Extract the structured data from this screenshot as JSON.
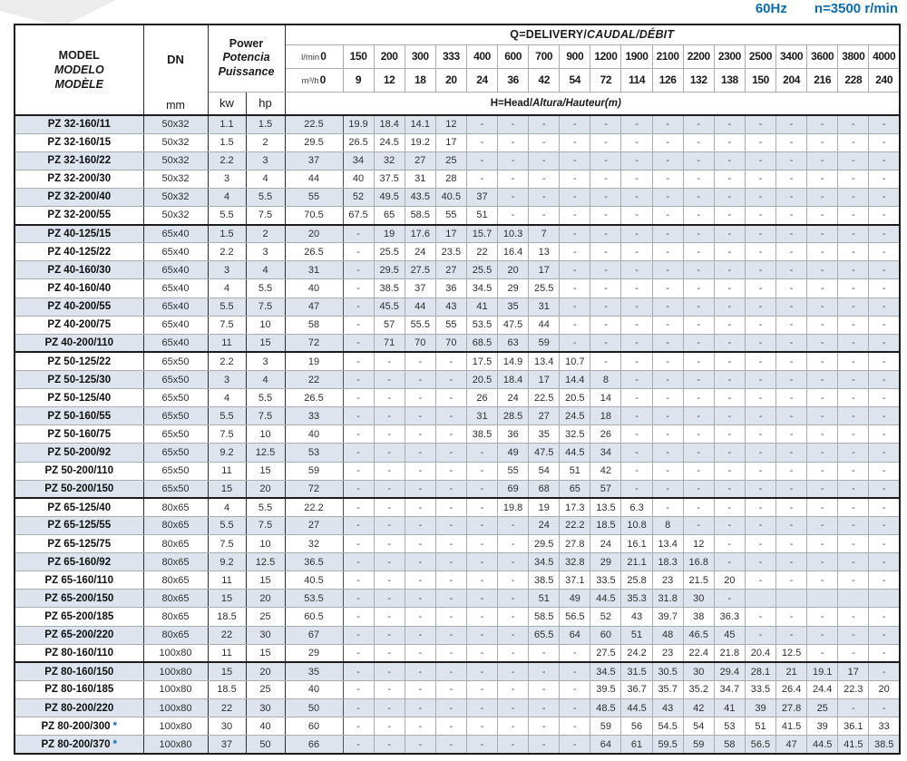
{
  "header": {
    "frequency": "60Hz",
    "speed": "n=3500 r/min"
  },
  "colors": {
    "accent_blue": "#0a6cb5",
    "row_shade": "#dde4ee"
  },
  "table": {
    "column_headers": {
      "model_line1": "MODEL",
      "model_line2": "MODELO",
      "model_line3": "MODÈLE",
      "dn": "DN",
      "dn_unit": "mm",
      "power_line1": "Power",
      "power_line2": "Potencia",
      "power_line3": "Puissance",
      "kw": "kw",
      "hp": "hp",
      "q_title_plain": "Q=DELIVERY/",
      "q_title_italic": "CAUDAL/DÉBIT",
      "lmin_label": "l/min",
      "lmin_zero": "0",
      "m3h_label": "m³/h",
      "m3h_zero": "0",
      "lmin_values": [
        "150",
        "200",
        "300",
        "333",
        "400",
        "600",
        "700",
        "900",
        "1200",
        "1900",
        "2100",
        "2200",
        "2300",
        "2500",
        "3400",
        "3600",
        "3800",
        "4000"
      ],
      "m3h_values": [
        "9",
        "12",
        "18",
        "20",
        "24",
        "36",
        "42",
        "54",
        "72",
        "114",
        "126",
        "132",
        "138",
        "150",
        "204",
        "216",
        "228",
        "240"
      ],
      "h_title_plain": "H=Head/",
      "h_title_italic": "Altura/Hauteur(m)"
    },
    "star_symbol": "*",
    "rows": [
      {
        "model": "PZ 32-160/11",
        "dn": "50x32",
        "kw": "1.1",
        "hp": "1.5",
        "heads": [
          "22.5",
          "19.9",
          "18.4",
          "14.1",
          "12",
          "-",
          "-",
          "-",
          "-",
          "-",
          "-",
          "-",
          "-",
          "-",
          "-",
          "-",
          "-",
          "-",
          "-"
        ]
      },
      {
        "model": "PZ 32-160/15",
        "dn": "50x32",
        "kw": "1.5",
        "hp": "2",
        "heads": [
          "29.5",
          "26.5",
          "24.5",
          "19.2",
          "17",
          "-",
          "-",
          "-",
          "-",
          "-",
          "-",
          "-",
          "-",
          "-",
          "-",
          "-",
          "-",
          "-",
          "-"
        ]
      },
      {
        "model": "PZ 32-160/22",
        "dn": "50x32",
        "kw": "2.2",
        "hp": "3",
        "heads": [
          "37",
          "34",
          "32",
          "27",
          "25",
          "-",
          "-",
          "-",
          "-",
          "-",
          "-",
          "-",
          "-",
          "-",
          "-",
          "-",
          "-",
          "-",
          "-"
        ]
      },
      {
        "model": "PZ 32-200/30",
        "dn": "50x32",
        "kw": "3",
        "hp": "4",
        "heads": [
          "44",
          "40",
          "37.5",
          "31",
          "28",
          "-",
          "-",
          "-",
          "-",
          "-",
          "-",
          "-",
          "-",
          "-",
          "-",
          "-",
          "-",
          "-",
          "-"
        ]
      },
      {
        "model": "PZ 32-200/40",
        "dn": "50x32",
        "kw": "4",
        "hp": "5.5",
        "heads": [
          "55",
          "52",
          "49.5",
          "43.5",
          "40.5",
          "37",
          "-",
          "-",
          "-",
          "-",
          "-",
          "-",
          "-",
          "-",
          "-",
          "-",
          "-",
          "-",
          "-"
        ]
      },
      {
        "model": "PZ 32-200/55",
        "dn": "50x32",
        "kw": "5.5",
        "hp": "7.5",
        "heads": [
          "70.5",
          "67.5",
          "65",
          "58.5",
          "55",
          "51",
          "-",
          "-",
          "-",
          "-",
          "-",
          "-",
          "-",
          "-",
          "-",
          "-",
          "-",
          "-",
          "-"
        ],
        "sep": true
      },
      {
        "model": "PZ 40-125/15",
        "dn": "65x40",
        "kw": "1.5",
        "hp": "2",
        "heads": [
          "20",
          "-",
          "19",
          "17.6",
          "17",
          "15.7",
          "10.3",
          "7",
          "-",
          "-",
          "-",
          "-",
          "-",
          "-",
          "-",
          "-",
          "-",
          "-",
          "-"
        ]
      },
      {
        "model": "PZ 40-125/22",
        "dn": "65x40",
        "kw": "2.2",
        "hp": "3",
        "heads": [
          "26.5",
          "-",
          "25.5",
          "24",
          "23.5",
          "22",
          "16.4",
          "13",
          "-",
          "-",
          "-",
          "-",
          "-",
          "-",
          "-",
          "-",
          "-",
          "-",
          "-"
        ]
      },
      {
        "model": "PZ 40-160/30",
        "dn": "65x40",
        "kw": "3",
        "hp": "4",
        "heads": [
          "31",
          "-",
          "29.5",
          "27.5",
          "27",
          "25.5",
          "20",
          "17",
          "-",
          "-",
          "-",
          "-",
          "-",
          "-",
          "-",
          "-",
          "-",
          "-",
          "-"
        ]
      },
      {
        "model": "PZ 40-160/40",
        "dn": "65x40",
        "kw": "4",
        "hp": "5.5",
        "heads": [
          "40",
          "-",
          "38.5",
          "37",
          "36",
          "34.5",
          "29",
          "25.5",
          "-",
          "-",
          "-",
          "-",
          "-",
          "-",
          "-",
          "-",
          "-",
          "-",
          "-"
        ]
      },
      {
        "model": "PZ 40-200/55",
        "dn": "65x40",
        "kw": "5.5",
        "hp": "7.5",
        "heads": [
          "47",
          "-",
          "45.5",
          "44",
          "43",
          "41",
          "35",
          "31",
          "-",
          "-",
          "-",
          "-",
          "-",
          "-",
          "-",
          "-",
          "-",
          "-",
          "-"
        ]
      },
      {
        "model": "PZ 40-200/75",
        "dn": "65x40",
        "kw": "7.5",
        "hp": "10",
        "heads": [
          "58",
          "-",
          "57",
          "55.5",
          "55",
          "53.5",
          "47.5",
          "44",
          "-",
          "-",
          "-",
          "-",
          "-",
          "-",
          "-",
          "-",
          "-",
          "-",
          "-"
        ]
      },
      {
        "model": "PZ 40-200/110",
        "dn": "65x40",
        "kw": "11",
        "hp": "15",
        "heads": [
          "72",
          "-",
          "71",
          "70",
          "70",
          "68.5",
          "63",
          "59",
          "-",
          "-",
          "-",
          "-",
          "-",
          "-",
          "-",
          "-",
          "-",
          "-",
          "-"
        ],
        "sep": true
      },
      {
        "model": "PZ 50-125/22",
        "dn": "65x50",
        "kw": "2.2",
        "hp": "3",
        "heads": [
          "19",
          "-",
          "-",
          "-",
          "-",
          "17.5",
          "14.9",
          "13.4",
          "10.7",
          "-",
          "-",
          "-",
          "-",
          "-",
          "-",
          "-",
          "-",
          "-",
          "-"
        ]
      },
      {
        "model": "PZ 50-125/30",
        "dn": "65x50",
        "kw": "3",
        "hp": "4",
        "heads": [
          "22",
          "-",
          "-",
          "-",
          "-",
          "20.5",
          "18.4",
          "17",
          "14.4",
          "8",
          "-",
          "-",
          "-",
          "-",
          "-",
          "-",
          "-",
          "-",
          "-"
        ]
      },
      {
        "model": "PZ 50-125/40",
        "dn": "65x50",
        "kw": "4",
        "hp": "5.5",
        "heads": [
          "26.5",
          "-",
          "-",
          "-",
          "-",
          "26",
          "24",
          "22.5",
          "20.5",
          "14",
          "-",
          "-",
          "-",
          "-",
          "-",
          "-",
          "-",
          "-",
          "-"
        ]
      },
      {
        "model": "PZ 50-160/55",
        "dn": "65x50",
        "kw": "5.5",
        "hp": "7.5",
        "heads": [
          "33",
          "-",
          "-",
          "-",
          "-",
          "31",
          "28.5",
          "27",
          "24.5",
          "18",
          "-",
          "-",
          "-",
          "-",
          "-",
          "-",
          "-",
          "-",
          "-"
        ]
      },
      {
        "model": "PZ 50-160/75",
        "dn": "65x50",
        "kw": "7.5",
        "hp": "10",
        "heads": [
          "40",
          "-",
          "-",
          "-",
          "-",
          "38.5",
          "36",
          "35",
          "32.5",
          "26",
          "-",
          "-",
          "-",
          "-",
          "-",
          "-",
          "-",
          "-",
          "-"
        ]
      },
      {
        "model": "PZ 50-200/92",
        "dn": "65x50",
        "kw": "9.2",
        "hp": "12.5",
        "heads": [
          "53",
          "-",
          "-",
          "-",
          "-",
          "-",
          "49",
          "47.5",
          "44.5",
          "34",
          "-",
          "-",
          "-",
          "-",
          "-",
          "-",
          "-",
          "-",
          "-"
        ]
      },
      {
        "model": "PZ 50-200/110",
        "dn": "65x50",
        "kw": "11",
        "hp": "15",
        "heads": [
          "59",
          "-",
          "-",
          "-",
          "-",
          "-",
          "55",
          "54",
          "51",
          "42",
          "-",
          "-",
          "-",
          "-",
          "-",
          "-",
          "-",
          "-",
          "-"
        ]
      },
      {
        "model": "PZ 50-200/150",
        "dn": "65x50",
        "kw": "15",
        "hp": "20",
        "heads": [
          "72",
          "-",
          "-",
          "-",
          "-",
          "-",
          "69",
          "68",
          "65",
          "57",
          "-",
          "-",
          "-",
          "-",
          "-",
          "-",
          "-",
          "-",
          "-"
        ],
        "sep": true
      },
      {
        "model": "PZ 65-125/40",
        "dn": "80x65",
        "kw": "4",
        "hp": "5.5",
        "heads": [
          "22.2",
          "-",
          "-",
          "-",
          "-",
          "-",
          "19.8",
          "19",
          "17.3",
          "13.5",
          "6.3",
          "-",
          "-",
          "-",
          "-",
          "-",
          "-",
          "-",
          "-"
        ]
      },
      {
        "model": "PZ 65-125/55",
        "dn": "80x65",
        "kw": "5.5",
        "hp": "7.5",
        "heads": [
          "27",
          "-",
          "-",
          "-",
          "-",
          "-",
          "-",
          "24",
          "22.2",
          "18.5",
          "10.8",
          "8",
          "-",
          "-",
          "-",
          "-",
          "-",
          "-",
          "-"
        ]
      },
      {
        "model": "PZ 65-125/75",
        "dn": "80x65",
        "kw": "7.5",
        "hp": "10",
        "heads": [
          "32",
          "-",
          "-",
          "-",
          "-",
          "-",
          "-",
          "29.5",
          "27.8",
          "24",
          "16.1",
          "13.4",
          "12",
          "-",
          "-",
          "-",
          "-",
          "-",
          "-"
        ]
      },
      {
        "model": "PZ 65-160/92",
        "dn": "80x65",
        "kw": "9.2",
        "hp": "12.5",
        "heads": [
          "36.5",
          "-",
          "-",
          "-",
          "-",
          "-",
          "-",
          "34.5",
          "32.8",
          "29",
          "21.1",
          "18.3",
          "16.8",
          "-",
          "-",
          "-",
          "-",
          "-",
          "-"
        ]
      },
      {
        "model": "PZ 65-160/110",
        "dn": "80x65",
        "kw": "11",
        "hp": "15",
        "heads": [
          "40.5",
          "-",
          "-",
          "-",
          "-",
          "-",
          "-",
          "38.5",
          "37.1",
          "33.5",
          "25.8",
          "23",
          "21.5",
          "20",
          "-",
          "-",
          "-",
          "-",
          "-"
        ]
      },
      {
        "model": "PZ 65-200/150",
        "dn": "80x65",
        "kw": "15",
        "hp": "20",
        "heads": [
          "53.5",
          "-",
          "-",
          "-",
          "-",
          "-",
          "-",
          "51",
          "49",
          "44.5",
          "35.3",
          "31.8",
          "30",
          "-",
          "",
          "",
          "",
          "",
          ""
        ]
      },
      {
        "model": "PZ 65-200/185",
        "dn": "80x65",
        "kw": "18.5",
        "hp": "25",
        "heads": [
          "60.5",
          "-",
          "-",
          "-",
          "-",
          "-",
          "-",
          "58.5",
          "56.5",
          "52",
          "43",
          "39.7",
          "38",
          "36.3",
          "-",
          "-",
          "-",
          "-",
          "-"
        ]
      },
      {
        "model": "PZ 65-200/220",
        "dn": "80x65",
        "kw": "22",
        "hp": "30",
        "heads": [
          "67",
          "-",
          "-",
          "-",
          "-",
          "-",
          "-",
          "65.5",
          "64",
          "60",
          "51",
          "48",
          "46.5",
          "45",
          "-",
          "-",
          "-",
          "-",
          "-"
        ]
      },
      {
        "model": "PZ 80-160/110",
        "dn": "100x80",
        "kw": "11",
        "hp": "15",
        "heads": [
          "29",
          "-",
          "-",
          "-",
          "-",
          "-",
          "-",
          "-",
          "-",
          "27.5",
          "24.2",
          "23",
          "22.4",
          "21.8",
          "20.4",
          "12.5",
          "-",
          "-",
          "-"
        ],
        "sep": true
      },
      {
        "model": "PZ 80-160/150",
        "dn": "100x80",
        "kw": "15",
        "hp": "20",
        "heads": [
          "35",
          "-",
          "-",
          "-",
          "-",
          "-",
          "-",
          "-",
          "-",
          "34.5",
          "31.5",
          "30.5",
          "30",
          "29.4",
          "28.1",
          "21",
          "19.1",
          "17",
          "-"
        ]
      },
      {
        "model": "PZ 80-160/185",
        "dn": "100x80",
        "kw": "18.5",
        "hp": "25",
        "heads": [
          "40",
          "-",
          "-",
          "-",
          "-",
          "-",
          "-",
          "-",
          "-",
          "39.5",
          "36.7",
          "35.7",
          "35.2",
          "34.7",
          "33.5",
          "26.4",
          "24.4",
          "22.3",
          "20"
        ]
      },
      {
        "model": "PZ 80-200/220",
        "dn": "100x80",
        "kw": "22",
        "hp": "30",
        "heads": [
          "50",
          "-",
          "-",
          "-",
          "-",
          "-",
          "-",
          "-",
          "-",
          "48.5",
          "44.5",
          "43",
          "42",
          "41",
          "39",
          "27.8",
          "25",
          "-",
          "-"
        ]
      },
      {
        "model": "PZ 80-200/300",
        "star": true,
        "dn": "100x80",
        "kw": "30",
        "hp": "40",
        "heads": [
          "60",
          "-",
          "-",
          "-",
          "-",
          "-",
          "-",
          "-",
          "-",
          "59",
          "56",
          "54.5",
          "54",
          "53",
          "51",
          "41.5",
          "39",
          "36.1",
          "33"
        ]
      },
      {
        "model": "PZ 80-200/370",
        "star": true,
        "dn": "100x80",
        "kw": "37",
        "hp": "50",
        "heads": [
          "66",
          "-",
          "-",
          "-",
          "-",
          "-",
          "-",
          "-",
          "-",
          "64",
          "61",
          "59.5",
          "59",
          "58",
          "56.5",
          "47",
          "44.5",
          "41.5",
          "38.5"
        ]
      }
    ]
  }
}
